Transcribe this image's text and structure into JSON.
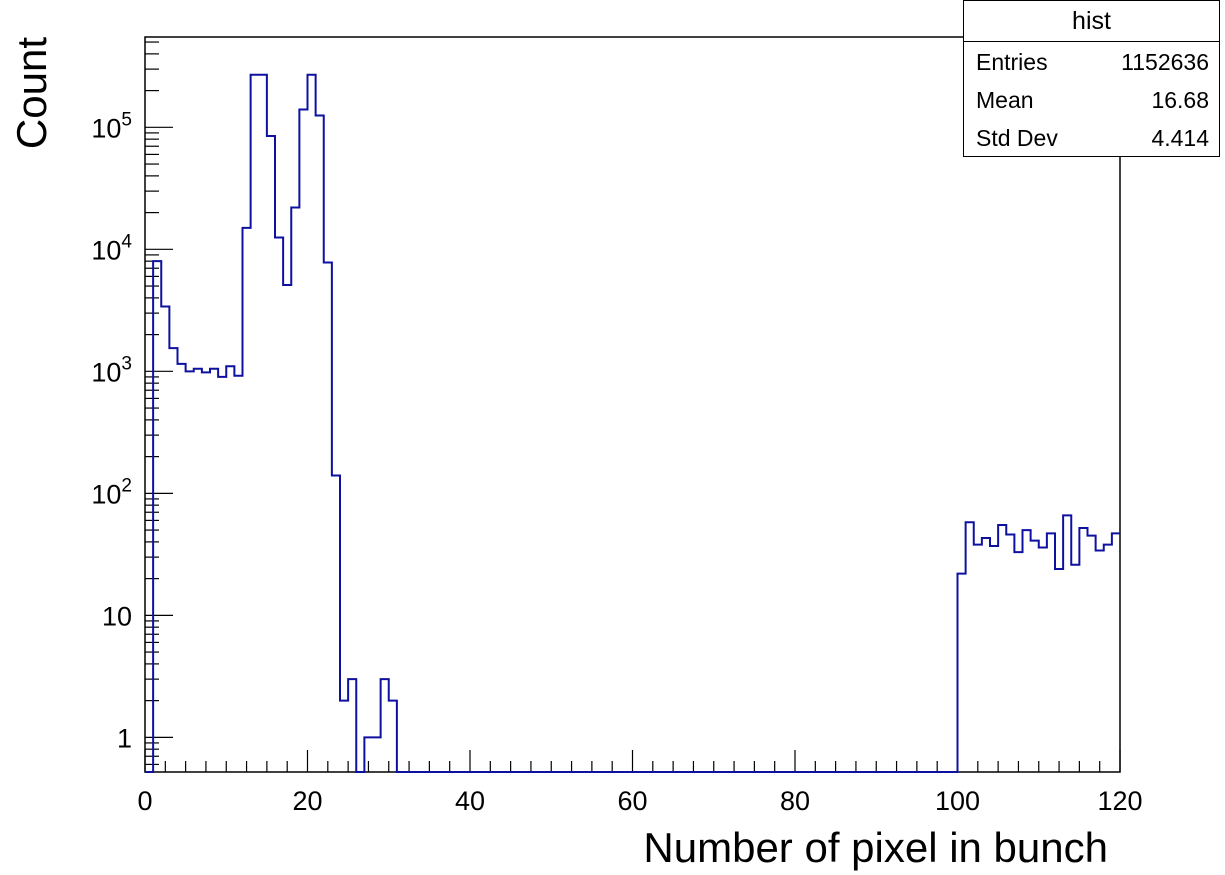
{
  "chart_data": {
    "type": "histogram",
    "title": "",
    "xlabel": "Number of pixel in bunch",
    "ylabel": "Count",
    "xlim": [
      0,
      120
    ],
    "ylim": [
      0.52,
      550000
    ],
    "yscale": "log",
    "line_color": "#0e10a0",
    "x_ticks": [
      "0",
      "20",
      "40",
      "60",
      "80",
      "100",
      "120"
    ],
    "y_ticks": [
      {
        "value": 1,
        "label": "1"
      },
      {
        "value": 10,
        "label": "10"
      },
      {
        "value": 100,
        "label": "10",
        "exp": "2"
      },
      {
        "value": 1000,
        "label": "10",
        "exp": "3"
      },
      {
        "value": 10000,
        "label": "10",
        "exp": "4"
      },
      {
        "value": 100000,
        "label": "10",
        "exp": "5"
      }
    ],
    "bin_width": 1,
    "bin_edges_start": 0,
    "values": [
      0,
      8000,
      3400,
      1550,
      1150,
      1000,
      1050,
      980,
      1050,
      900,
      1100,
      920,
      15000,
      270000,
      270000,
      85000,
      12500,
      5100,
      22000,
      140000,
      270000,
      125000,
      7800,
      140,
      2,
      3,
      0,
      1,
      1,
      3,
      2,
      0,
      0,
      0,
      0,
      0,
      0,
      0,
      0,
      0,
      0,
      0,
      0,
      0,
      0,
      0,
      0,
      0,
      0,
      0,
      0,
      0,
      0,
      0,
      0,
      0,
      0,
      0,
      0,
      0,
      0,
      0,
      0,
      0,
      0,
      0,
      0,
      0,
      0,
      0,
      0,
      0,
      0,
      0,
      0,
      0,
      0,
      0,
      0,
      0,
      0,
      0,
      0,
      0,
      0,
      0,
      0,
      0,
      0,
      0,
      0,
      0,
      0,
      0,
      0,
      0,
      0,
      0,
      0,
      0,
      22,
      58,
      38,
      43,
      37,
      55,
      46,
      33,
      50,
      41,
      36,
      47,
      24,
      66,
      26,
      52,
      45,
      34,
      38,
      47
    ]
  },
  "stats": {
    "title": "hist",
    "rows": [
      {
        "label": "Entries",
        "value": "1152636"
      },
      {
        "label": "Mean",
        "value": "16.68"
      },
      {
        "label": "Std Dev",
        "value": "4.414"
      }
    ]
  }
}
